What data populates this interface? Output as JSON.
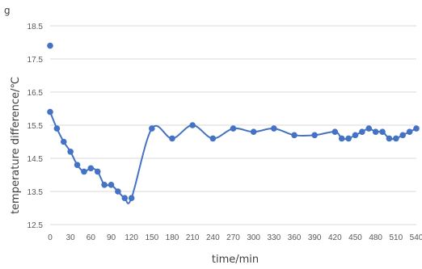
{
  "chart_data": {
    "type": "line",
    "title": "",
    "corner_label": "g",
    "xlabel": "time/min",
    "ylabel": "temperature difference/℃",
    "xlim": [
      0,
      540
    ],
    "ylim": [
      12.5,
      18.5
    ],
    "x_ticks": [
      "0",
      "30",
      "60",
      "90",
      "120",
      "150",
      "180",
      "210",
      "240",
      "270",
      "300",
      "330",
      "360",
      "390",
      "420",
      "450",
      "480",
      "510",
      "540"
    ],
    "y_ticks": [
      "12.5",
      "13.5",
      "14.5",
      "15.5",
      "16.5",
      "17.5",
      "18.5"
    ],
    "grid": "horizontal",
    "legend": "none",
    "series_color": "#4472c4",
    "outlier": {
      "x": 0,
      "y": 17.9
    },
    "series": [
      {
        "x": [
          0,
          10,
          20,
          30,
          40,
          50,
          60,
          70,
          80,
          90,
          100,
          110,
          120,
          150,
          180,
          210,
          240,
          270,
          300,
          330,
          360,
          390,
          420,
          430,
          440,
          450,
          460,
          470,
          480,
          490,
          500,
          510,
          520,
          530,
          540
        ],
        "values": [
          15.9,
          15.4,
          15.0,
          14.7,
          14.3,
          14.1,
          14.2,
          14.1,
          13.7,
          13.7,
          13.5,
          13.3,
          13.3,
          15.4,
          15.1,
          15.5,
          15.1,
          15.4,
          15.3,
          15.4,
          15.2,
          15.2,
          15.3,
          15.1,
          15.1,
          15.2,
          15.3,
          15.4,
          15.3,
          15.3,
          15.1,
          15.1,
          15.2,
          15.3,
          15.4
        ]
      }
    ]
  }
}
